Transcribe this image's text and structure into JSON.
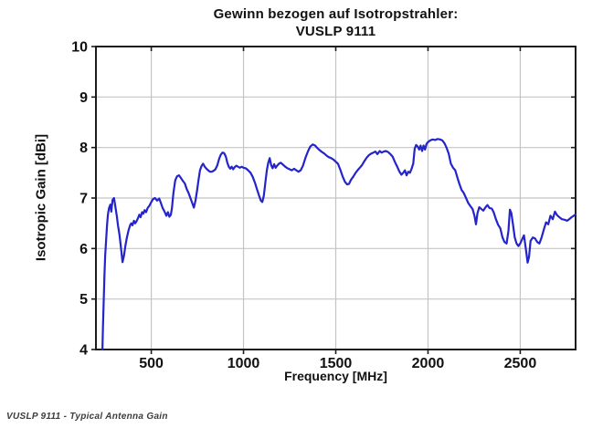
{
  "figure": {
    "caption": "VUSLP 9111 - Typical Antenna Gain"
  },
  "chart_data": {
    "type": "line",
    "title": "Gewinn bezogen auf Isotropstrahler:",
    "subtitle": "VUSLP 9111",
    "xlabel": "Frequency [MHz]",
    "ylabel": "Isotropic Gain [dBi]",
    "xlim": [
      200,
      2800
    ],
    "ylim": [
      4,
      10
    ],
    "xticks": [
      500,
      1000,
      1500,
      2000,
      2500
    ],
    "yticks": [
      4,
      5,
      6,
      7,
      8,
      9,
      10
    ],
    "grid": true,
    "legend": "none",
    "colors": {
      "line": "#2424cc",
      "grid": "#c4c4c4",
      "axis": "#1c1c1c",
      "text": "#111111",
      "background": "#ffffff"
    },
    "series": [
      {
        "name": "VUSLP 9111",
        "points": [
          [
            235,
            4.0
          ],
          [
            238,
            4.45
          ],
          [
            242,
            4.95
          ],
          [
            246,
            5.45
          ],
          [
            250,
            5.85
          ],
          [
            255,
            6.15
          ],
          [
            260,
            6.45
          ],
          [
            265,
            6.67
          ],
          [
            271,
            6.8
          ],
          [
            278,
            6.87
          ],
          [
            283,
            6.73
          ],
          [
            290,
            6.96
          ],
          [
            298,
            7.0
          ],
          [
            305,
            6.84
          ],
          [
            313,
            6.65
          ],
          [
            320,
            6.45
          ],
          [
            328,
            6.27
          ],
          [
            336,
            6.0
          ],
          [
            344,
            5.73
          ],
          [
            352,
            5.86
          ],
          [
            360,
            6.06
          ],
          [
            368,
            6.22
          ],
          [
            377,
            6.36
          ],
          [
            386,
            6.47
          ],
          [
            392,
            6.5
          ],
          [
            398,
            6.46
          ],
          [
            406,
            6.55
          ],
          [
            413,
            6.5
          ],
          [
            420,
            6.54
          ],
          [
            428,
            6.6
          ],
          [
            435,
            6.67
          ],
          [
            442,
            6.62
          ],
          [
            450,
            6.72
          ],
          [
            457,
            6.69
          ],
          [
            464,
            6.76
          ],
          [
            472,
            6.72
          ],
          [
            480,
            6.8
          ],
          [
            490,
            6.85
          ],
          [
            500,
            6.92
          ],
          [
            510,
            6.98
          ],
          [
            520,
            7.0
          ],
          [
            532,
            6.95
          ],
          [
            543,
            6.99
          ],
          [
            552,
            6.9
          ],
          [
            562,
            6.8
          ],
          [
            572,
            6.73
          ],
          [
            582,
            6.65
          ],
          [
            590,
            6.72
          ],
          [
            598,
            6.63
          ],
          [
            606,
            6.67
          ],
          [
            612,
            6.8
          ],
          [
            620,
            7.1
          ],
          [
            630,
            7.35
          ],
          [
            640,
            7.43
          ],
          [
            650,
            7.45
          ],
          [
            660,
            7.4
          ],
          [
            671,
            7.34
          ],
          [
            682,
            7.29
          ],
          [
            692,
            7.18
          ],
          [
            702,
            7.1
          ],
          [
            712,
            7.0
          ],
          [
            722,
            6.9
          ],
          [
            731,
            6.81
          ],
          [
            740,
            6.95
          ],
          [
            748,
            7.15
          ],
          [
            756,
            7.36
          ],
          [
            764,
            7.55
          ],
          [
            772,
            7.63
          ],
          [
            781,
            7.68
          ],
          [
            790,
            7.62
          ],
          [
            799,
            7.58
          ],
          [
            808,
            7.55
          ],
          [
            818,
            7.52
          ],
          [
            828,
            7.52
          ],
          [
            838,
            7.54
          ],
          [
            848,
            7.57
          ],
          [
            858,
            7.65
          ],
          [
            868,
            7.78
          ],
          [
            877,
            7.86
          ],
          [
            886,
            7.9
          ],
          [
            895,
            7.89
          ],
          [
            904,
            7.82
          ],
          [
            912,
            7.7
          ],
          [
            920,
            7.62
          ],
          [
            928,
            7.58
          ],
          [
            936,
            7.62
          ],
          [
            944,
            7.57
          ],
          [
            952,
            7.61
          ],
          [
            961,
            7.64
          ],
          [
            970,
            7.62
          ],
          [
            980,
            7.6
          ],
          [
            990,
            7.62
          ],
          [
            1000,
            7.6
          ],
          [
            1012,
            7.59
          ],
          [
            1025,
            7.55
          ],
          [
            1038,
            7.5
          ],
          [
            1050,
            7.42
          ],
          [
            1062,
            7.3
          ],
          [
            1074,
            7.16
          ],
          [
            1084,
            7.05
          ],
          [
            1094,
            6.95
          ],
          [
            1102,
            6.92
          ],
          [
            1110,
            7.05
          ],
          [
            1118,
            7.3
          ],
          [
            1126,
            7.54
          ],
          [
            1134,
            7.7
          ],
          [
            1142,
            7.79
          ],
          [
            1150,
            7.65
          ],
          [
            1158,
            7.59
          ],
          [
            1166,
            7.67
          ],
          [
            1174,
            7.6
          ],
          [
            1182,
            7.64
          ],
          [
            1192,
            7.68
          ],
          [
            1202,
            7.7
          ],
          [
            1214,
            7.66
          ],
          [
            1226,
            7.62
          ],
          [
            1238,
            7.59
          ],
          [
            1250,
            7.57
          ],
          [
            1262,
            7.55
          ],
          [
            1274,
            7.58
          ],
          [
            1286,
            7.55
          ],
          [
            1298,
            7.52
          ],
          [
            1310,
            7.55
          ],
          [
            1322,
            7.64
          ],
          [
            1336,
            7.8
          ],
          [
            1350,
            7.93
          ],
          [
            1362,
            8.02
          ],
          [
            1375,
            8.06
          ],
          [
            1388,
            8.04
          ],
          [
            1400,
            7.99
          ],
          [
            1412,
            7.95
          ],
          [
            1425,
            7.91
          ],
          [
            1438,
            7.88
          ],
          [
            1450,
            7.84
          ],
          [
            1462,
            7.81
          ],
          [
            1475,
            7.79
          ],
          [
            1488,
            7.76
          ],
          [
            1500,
            7.72
          ],
          [
            1512,
            7.68
          ],
          [
            1525,
            7.56
          ],
          [
            1538,
            7.42
          ],
          [
            1550,
            7.32
          ],
          [
            1562,
            7.27
          ],
          [
            1572,
            7.28
          ],
          [
            1582,
            7.36
          ],
          [
            1594,
            7.42
          ],
          [
            1606,
            7.49
          ],
          [
            1618,
            7.55
          ],
          [
            1630,
            7.6
          ],
          [
            1642,
            7.65
          ],
          [
            1655,
            7.73
          ],
          [
            1668,
            7.8
          ],
          [
            1680,
            7.85
          ],
          [
            1692,
            7.88
          ],
          [
            1704,
            7.9
          ],
          [
            1715,
            7.92
          ],
          [
            1726,
            7.87
          ],
          [
            1738,
            7.93
          ],
          [
            1748,
            7.9
          ],
          [
            1760,
            7.92
          ],
          [
            1772,
            7.93
          ],
          [
            1784,
            7.91
          ],
          [
            1796,
            7.87
          ],
          [
            1808,
            7.82
          ],
          [
            1820,
            7.72
          ],
          [
            1832,
            7.63
          ],
          [
            1844,
            7.53
          ],
          [
            1856,
            7.46
          ],
          [
            1866,
            7.5
          ],
          [
            1875,
            7.55
          ],
          [
            1884,
            7.45
          ],
          [
            1893,
            7.52
          ],
          [
            1902,
            7.5
          ],
          [
            1911,
            7.58
          ],
          [
            1920,
            7.68
          ],
          [
            1928,
            7.98
          ],
          [
            1936,
            8.05
          ],
          [
            1944,
            8.02
          ],
          [
            1952,
            7.96
          ],
          [
            1960,
            8.04
          ],
          [
            1968,
            7.93
          ],
          [
            1976,
            8.04
          ],
          [
            1984,
            7.96
          ],
          [
            1992,
            8.07
          ],
          [
            2000,
            8.11
          ],
          [
            2012,
            8.14
          ],
          [
            2025,
            8.16
          ],
          [
            2040,
            8.15
          ],
          [
            2052,
            8.17
          ],
          [
            2065,
            8.16
          ],
          [
            2078,
            8.14
          ],
          [
            2090,
            8.08
          ],
          [
            2100,
            8.0
          ],
          [
            2112,
            7.88
          ],
          [
            2124,
            7.68
          ],
          [
            2136,
            7.6
          ],
          [
            2148,
            7.55
          ],
          [
            2158,
            7.42
          ],
          [
            2170,
            7.28
          ],
          [
            2182,
            7.16
          ],
          [
            2194,
            7.1
          ],
          [
            2206,
            7.0
          ],
          [
            2218,
            6.9
          ],
          [
            2230,
            6.84
          ],
          [
            2242,
            6.78
          ],
          [
            2252,
            6.65
          ],
          [
            2260,
            6.48
          ],
          [
            2268,
            6.7
          ],
          [
            2278,
            6.82
          ],
          [
            2290,
            6.78
          ],
          [
            2300,
            6.75
          ],
          [
            2312,
            6.82
          ],
          [
            2322,
            6.86
          ],
          [
            2334,
            6.8
          ],
          [
            2346,
            6.79
          ],
          [
            2356,
            6.72
          ],
          [
            2368,
            6.58
          ],
          [
            2380,
            6.47
          ],
          [
            2392,
            6.4
          ],
          [
            2404,
            6.22
          ],
          [
            2414,
            6.13
          ],
          [
            2426,
            6.1
          ],
          [
            2436,
            6.35
          ],
          [
            2444,
            6.77
          ],
          [
            2452,
            6.7
          ],
          [
            2460,
            6.5
          ],
          [
            2470,
            6.22
          ],
          [
            2480,
            6.1
          ],
          [
            2490,
            6.05
          ],
          [
            2500,
            6.1
          ],
          [
            2510,
            6.18
          ],
          [
            2520,
            6.26
          ],
          [
            2530,
            6.0
          ],
          [
            2540,
            5.72
          ],
          [
            2548,
            5.84
          ],
          [
            2556,
            6.15
          ],
          [
            2568,
            6.22
          ],
          [
            2580,
            6.2
          ],
          [
            2592,
            6.13
          ],
          [
            2604,
            6.1
          ],
          [
            2616,
            6.22
          ],
          [
            2628,
            6.38
          ],
          [
            2640,
            6.52
          ],
          [
            2652,
            6.48
          ],
          [
            2664,
            6.65
          ],
          [
            2676,
            6.58
          ],
          [
            2688,
            6.73
          ],
          [
            2700,
            6.66
          ],
          [
            2712,
            6.62
          ],
          [
            2726,
            6.58
          ],
          [
            2740,
            6.57
          ],
          [
            2754,
            6.55
          ],
          [
            2766,
            6.58
          ],
          [
            2778,
            6.62
          ],
          [
            2790,
            6.65
          ],
          [
            2798,
            6.67
          ]
        ]
      }
    ]
  }
}
